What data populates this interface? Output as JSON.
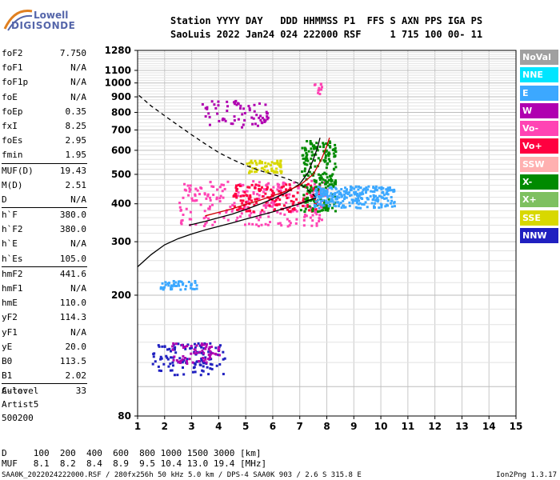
{
  "logo": {
    "top": "Lowell",
    "bottom": "DIGISONDE"
  },
  "header": {
    "labels_line": "Station YYYY DAY   DDD HHMMSS P1  FFS S AXN PPS IGA PS",
    "values_line": "SaoLuis 2022 Jan24 024 222000 RSF     1 715 100 00- 11"
  },
  "params": [
    {
      "k": "foF2",
      "v": "7.750"
    },
    {
      "k": "foF1",
      "v": "N/A"
    },
    {
      "k": "foF1p",
      "v": "N/A"
    },
    {
      "k": "foE",
      "v": "N/A"
    },
    {
      "k": "foEp",
      "v": "0.35"
    },
    {
      "k": "fxI",
      "v": "8.25"
    },
    {
      "k": "foEs",
      "v": "2.95"
    },
    {
      "k": "fmin",
      "v": "1.95"
    },
    {
      "k": "MUF(D)",
      "v": "19.43",
      "sep": true
    },
    {
      "k": "M(D)",
      "v": "2.51"
    },
    {
      "k": "D",
      "v": "N/A"
    },
    {
      "k": "h`F",
      "v": "380.0",
      "sep": true
    },
    {
      "k": "h`F2",
      "v": "380.0"
    },
    {
      "k": "h`E",
      "v": "N/A"
    },
    {
      "k": "h`Es",
      "v": "105.0"
    },
    {
      "k": "hmF2",
      "v": "441.6",
      "sep": true
    },
    {
      "k": "hmF1",
      "v": "N/A"
    },
    {
      "k": "hmE",
      "v": "110.0"
    },
    {
      "k": "yF2",
      "v": "114.3"
    },
    {
      "k": "yF1",
      "v": "N/A"
    },
    {
      "k": "yE",
      "v": "20.0"
    },
    {
      "k": "B0",
      "v": "113.5"
    },
    {
      "k": "B1",
      "v": "2.02"
    },
    {
      "k": "C-level",
      "v": "33",
      "sep": true
    }
  ],
  "auto": {
    "line1": "Auto:",
    "line2": "Artist5",
    "line3": "500200"
  },
  "legend": [
    {
      "label": "NoVal",
      "color": "#a0a0a0"
    },
    {
      "label": "NNE",
      "color": "#00e5ff"
    },
    {
      "label": "E",
      "color": "#3ca8ff"
    },
    {
      "label": "W",
      "color": "#b000b0"
    },
    {
      "label": "Vo-",
      "color": "#ff44b4"
    },
    {
      "label": "Vo+",
      "color": "#ff0040"
    },
    {
      "label": "SSW",
      "color": "#ffb0b0"
    },
    {
      "label": "X-",
      "color": "#008a00"
    },
    {
      "label": "X+",
      "color": "#7ec060"
    },
    {
      "label": "SSE",
      "color": "#d8d800"
    },
    {
      "label": "NNW",
      "color": "#2020c0"
    }
  ],
  "dm_table": {
    "row1": "D     100  200  400  600  800 1000 1500 3000 [km]",
    "row2": "MUF   8.1  8.2  8.4  8.9  9.5 10.4 13.0 19.4 [MHz]"
  },
  "footer": {
    "left": "SAA0K_2022024222000.RSF / 280fx256h 50 kHz 5.0 km / DPS-4 SAA0K 903 / 2.6 S 315.8 E",
    "right": "Ion2Png 1.3.17"
  },
  "chart_data": {
    "type": "scatter",
    "title": "",
    "xlabel": "",
    "ylabel": "",
    "x_unit": "MHz",
    "y_unit": "km",
    "xlim": [
      1,
      15
    ],
    "ylim": [
      80,
      1280
    ],
    "y_scale": "log",
    "grid": true,
    "x_ticks": [
      1,
      2,
      3,
      4,
      5,
      6,
      7,
      8,
      9,
      10,
      11,
      12,
      13,
      14,
      15
    ],
    "y_ticks": [
      80,
      200,
      300,
      400,
      500,
      600,
      700,
      800,
      900,
      1000,
      1100,
      1280
    ],
    "legend_position": "right-outside",
    "series": [
      {
        "name": "virtual height profile (dashed)",
        "style": "dashed",
        "color": "#000000",
        "x": [
          1.05,
          1.5,
          2,
          2.5,
          3,
          3.5,
          4,
          4.5,
          5,
          5.5,
          6,
          6.5,
          7,
          7.3,
          7.6
        ],
        "y": [
          910,
          840,
          780,
          725,
          675,
          630,
          590,
          560,
          535,
          515,
          500,
          485,
          465,
          445,
          420
        ]
      },
      {
        "name": "true height profile (solid)",
        "style": "solid",
        "color": "#000000",
        "x": [
          1,
          1.5,
          2,
          2.5,
          3,
          3.5,
          4,
          4.5,
          5,
          5.5,
          6,
          6.5,
          7,
          7.3,
          7.6
        ],
        "y": [
          248,
          272,
          293,
          307,
          318,
          328,
          337,
          346,
          356,
          366,
          376,
          388,
          400,
          410,
          418
        ]
      },
      {
        "name": "O trace fit (solid)",
        "style": "solid",
        "color": "#000000",
        "x": [
          2.9,
          3.5,
          4,
          4.5,
          5,
          5.5,
          6,
          6.5,
          7,
          7.3,
          7.5,
          7.65,
          7.75
        ],
        "y": [
          340,
          350,
          360,
          370,
          383,
          398,
          415,
          435,
          465,
          505,
          560,
          610,
          660
        ]
      },
      {
        "name": "X trace fit (red)",
        "style": "solid",
        "color": "#cc0000",
        "x": [
          3.5,
          4,
          4.5,
          5,
          5.5,
          6,
          6.5,
          7,
          7.5,
          7.8,
          8,
          8.1
        ],
        "y": [
          365,
          375,
          385,
          398,
          410,
          425,
          440,
          460,
          500,
          560,
          620,
          660
        ]
      }
    ],
    "echo_clusters": [
      {
        "legend": "NNW",
        "x": [
          1.5,
          4.2
        ],
        "y": [
          110,
          140
        ]
      },
      {
        "legend": "W",
        "x": [
          2.2,
          4.0
        ],
        "y": [
          120,
          140
        ]
      },
      {
        "legend": "E",
        "x": [
          1.8,
          3.2
        ],
        "y": [
          210,
          225
        ]
      },
      {
        "legend": "Vo-",
        "x": [
          2.5,
          8.0
        ],
        "y": [
          340,
          480
        ]
      },
      {
        "legend": "Vo+",
        "x": [
          4.5,
          7.8
        ],
        "y": [
          380,
          470
        ]
      },
      {
        "legend": "X-",
        "x": [
          7.0,
          8.3
        ],
        "y": [
          380,
          650
        ]
      },
      {
        "legend": "E",
        "x": [
          7.5,
          10.5
        ],
        "y": [
          390,
          460
        ]
      },
      {
        "legend": "SSE",
        "x": [
          5.0,
          6.3
        ],
        "y": [
          510,
          560
        ]
      },
      {
        "legend": "W",
        "x": [
          3.3,
          5.8
        ],
        "y": [
          720,
          880
        ]
      },
      {
        "legend": "Vo-",
        "x": [
          7.5,
          7.8
        ],
        "y": [
          920,
          1010
        ]
      }
    ]
  }
}
